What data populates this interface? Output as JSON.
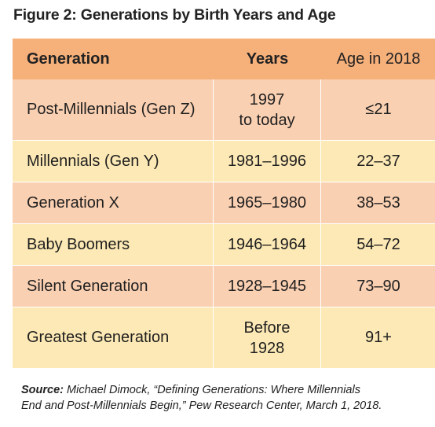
{
  "figure": {
    "title": "Figure 2: Generations by Birth Years and Age"
  },
  "table": {
    "headers": {
      "generation": "Generation",
      "years": "Years",
      "age": "Age in 2018"
    },
    "rows": [
      {
        "generation": "Post-Millennials (Gen Z)",
        "years_line1": "1997",
        "years_line2": "to today",
        "age": "≤21"
      },
      {
        "generation": "Millennials (Gen Y)",
        "years": "1981–1996",
        "age": "22–37"
      },
      {
        "generation": "Generation X",
        "years": "1965–1980",
        "age": "38–53"
      },
      {
        "generation": "Baby Boomers",
        "years": "1946–1964",
        "age": "54–72"
      },
      {
        "generation": "Silent Generation",
        "years": "1928–1945",
        "age": "73–90"
      },
      {
        "generation": "Greatest Generation",
        "years_line1": "Before",
        "years_line2": "1928",
        "age": "91+"
      }
    ],
    "colors": {
      "header": "#f6b07a",
      "row_dark": "#fad0b2",
      "row_light": "#fde9b5"
    }
  },
  "source": {
    "label": "Source:",
    "line1": "Michael Dimock, “Defining Generations: Where Millennials",
    "line2": "End and Post-Millennials Begin,” Pew Research Center, March 1, 2018."
  }
}
